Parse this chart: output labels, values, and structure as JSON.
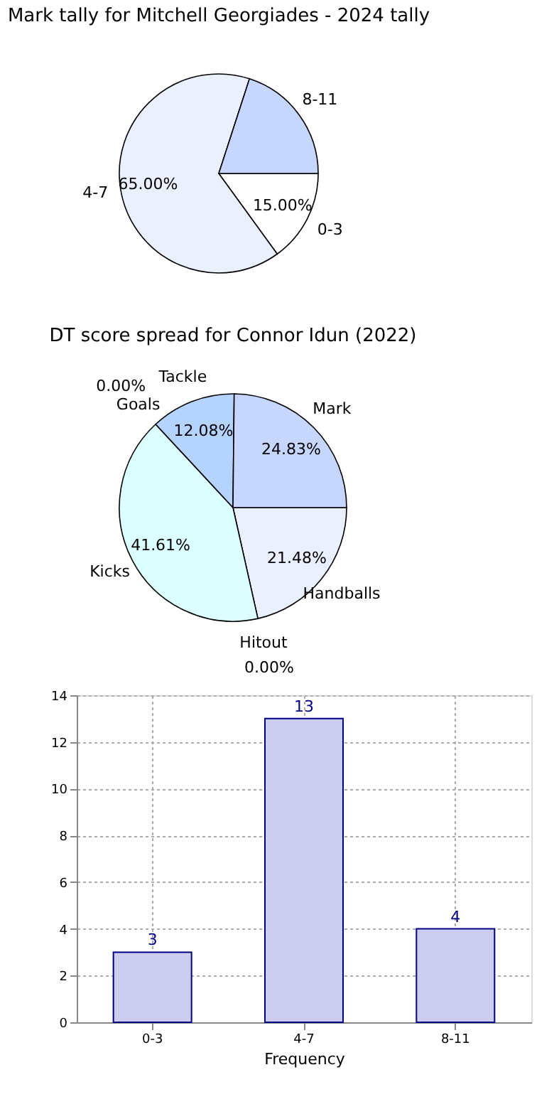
{
  "chart_data": [
    {
      "type": "pie",
      "title": "Mark tally for Mitchell Georgiades - 2024 tally",
      "categories": [
        "0-3",
        "4-7",
        "8-11"
      ],
      "values": [
        15,
        65,
        20
      ],
      "colors": [
        "#ffffff",
        "#eaf0ff",
        "#c6d6ff"
      ],
      "value_labels": [
        "15.00%",
        "65.00%",
        null
      ]
    },
    {
      "type": "pie",
      "title": "DT score spread for Connor Idun (2022)",
      "categories": [
        "Handballs",
        "Hitout",
        "Kicks",
        "Goals",
        "Tackle",
        "Mark"
      ],
      "values": [
        21.48,
        0,
        41.61,
        0,
        12.08,
        24.83
      ],
      "colors": [
        "#eaf0ff",
        "#eaf0ff",
        "#dcffff",
        "#c6d6ff",
        "#b4d4ff",
        "#c6d6ff"
      ],
      "value_labels": [
        "21.48%",
        "0.00%",
        "41.61%",
        "0.00%",
        "12.08%",
        "24.83%"
      ]
    },
    {
      "type": "bar",
      "categories": [
        "0-3",
        "4-7",
        "8-11"
      ],
      "values": [
        3,
        13,
        4
      ],
      "color": "#ccccee",
      "xlabel": "Frequency",
      "ylim": [
        0,
        14
      ],
      "yticks": [
        0,
        2,
        4,
        6,
        8,
        10,
        12,
        14
      ],
      "grid": true,
      "data_labels": true
    }
  ]
}
